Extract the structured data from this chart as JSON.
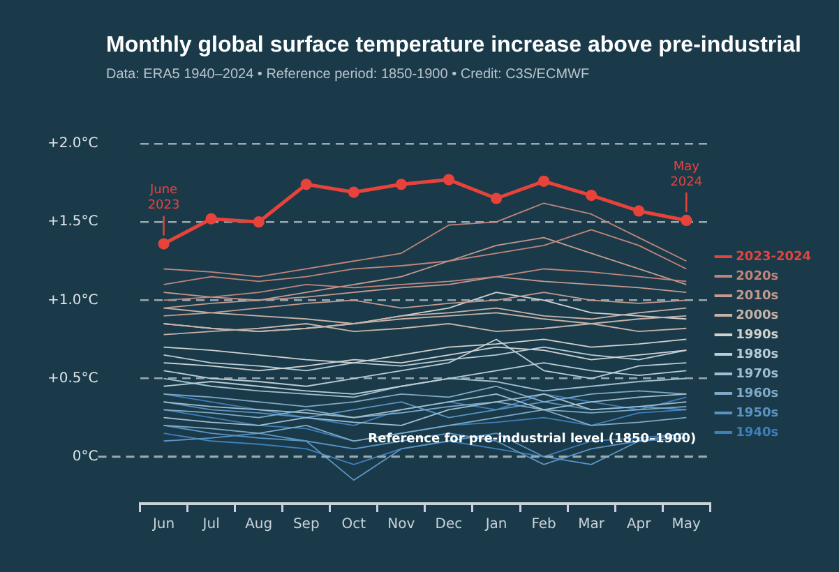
{
  "chart_data": {
    "type": "line",
    "title": "Monthly global surface temperature increase above pre-industrial",
    "subtitle": "Data: ERA5 1940–2024 • Reference period: 1850-1900 • Credit: C3S/ECMWF",
    "categories": [
      "Jun",
      "Jul",
      "Aug",
      "Sep",
      "Oct",
      "Nov",
      "Dec",
      "Jan",
      "Feb",
      "Mar",
      "Apr",
      "May"
    ],
    "ylim": [
      -0.3,
      2
    ],
    "yticks": [
      {
        "value": 0,
        "label": "0°C"
      },
      {
        "value": 0.5,
        "label": "+0.5°C"
      },
      {
        "value": 1,
        "label": "+1.0°C"
      },
      {
        "value": 1.5,
        "label": "+1.5°C"
      },
      {
        "value": 2,
        "label": "+2.0°C"
      }
    ],
    "grid": "y",
    "legend": "right",
    "line_style": "solid",
    "ref_lines": [
      {
        "axis": "y",
        "value": 0,
        "label": "Reference for pre-industrial level (1850–1900)",
        "color": "#9aa8b0",
        "line_style": "dashed"
      }
    ],
    "annotations": [
      {
        "text": "June 2023",
        "x": "Jun",
        "y": 1.36
      },
      {
        "text": "May 2024",
        "x": "May",
        "y": 1.51
      }
    ],
    "series": [
      {
        "name": "2023-2024",
        "color": "#e8433a",
        "marker": "circle",
        "values": [
          1.36,
          1.52,
          1.5,
          1.74,
          1.69,
          1.74,
          1.77,
          1.65,
          1.76,
          1.67,
          1.57,
          1.51
        ]
      },
      {
        "name": "2020s",
        "color": "#c0857a",
        "values": [
          1.2,
          1.18,
          1.15,
          1.2,
          1.25,
          1.3,
          1.48,
          1.5,
          1.62,
          1.55,
          1.4,
          1.25
        ]
      },
      {
        "color": "#c0857a",
        "values": [
          1.1,
          1.15,
          1.12,
          1.15,
          1.2,
          1.22,
          1.25,
          1.3,
          1.35,
          1.45,
          1.35,
          1.2
        ]
      },
      {
        "color": "#c0857a",
        "values": [
          1,
          1.02,
          1.05,
          1.1,
          1.08,
          1.1,
          1.12,
          1.15,
          1.2,
          1.18,
          1.15,
          1.12
        ]
      },
      {
        "name": "2010s",
        "color": "#c49a8e",
        "values": [
          0.95,
          0.98,
          1,
          1.05,
          1.1,
          1.15,
          1.25,
          1.35,
          1.4,
          1.3,
          1.2,
          1.1
        ]
      },
      {
        "color": "#c49a8e",
        "values": [
          1.05,
          1.02,
          1,
          1.02,
          1.05,
          1.08,
          1.1,
          1.15,
          1.12,
          1.1,
          1.08,
          1.05
        ]
      },
      {
        "color": "#c49a8e",
        "values": [
          0.9,
          0.92,
          0.95,
          0.98,
          1,
          0.95,
          0.98,
          1,
          1.05,
          1,
          0.98,
          1
        ]
      },
      {
        "name": "2000s",
        "color": "#c6b2a8",
        "values": [
          0.85,
          0.82,
          0.8,
          0.82,
          0.85,
          0.88,
          0.9,
          0.92,
          0.88,
          0.85,
          0.88,
          0.9
        ]
      },
      {
        "color": "#c6b2a8",
        "values": [
          0.95,
          0.92,
          0.9,
          0.88,
          0.85,
          0.9,
          0.92,
          0.95,
          0.9,
          0.88,
          0.92,
          0.95
        ]
      },
      {
        "color": "#c6b2a8",
        "values": [
          0.78,
          0.8,
          0.82,
          0.85,
          0.8,
          0.82,
          0.85,
          0.8,
          0.82,
          0.85,
          0.8,
          0.82
        ]
      },
      {
        "name": "1990s",
        "color": "#d0d2d0",
        "values": [
          0.7,
          0.68,
          0.65,
          0.62,
          0.6,
          0.65,
          0.7,
          0.72,
          0.75,
          0.7,
          0.72,
          0.75
        ]
      },
      {
        "color": "#d0d2d0",
        "values": [
          0.6,
          0.58,
          0.55,
          0.58,
          0.62,
          0.6,
          0.65,
          0.7,
          0.68,
          0.62,
          0.65,
          0.68
        ]
      },
      {
        "color": "#d0d2d0",
        "values": [
          0.85,
          0.82,
          0.8,
          0.82,
          0.85,
          0.9,
          0.95,
          1.05,
          1,
          0.92,
          0.9,
          0.88
        ]
      },
      {
        "name": "1980s",
        "color": "#b8cdd6",
        "values": [
          0.55,
          0.5,
          0.48,
          0.45,
          0.5,
          0.55,
          0.6,
          0.75,
          0.55,
          0.5,
          0.58,
          0.6
        ]
      },
      {
        "color": "#b8cdd6",
        "values": [
          0.45,
          0.48,
          0.45,
          0.42,
          0.4,
          0.45,
          0.5,
          0.55,
          0.6,
          0.55,
          0.52,
          0.55
        ]
      },
      {
        "color": "#b8cdd6",
        "values": [
          0.65,
          0.6,
          0.58,
          0.55,
          0.6,
          0.58,
          0.62,
          0.65,
          0.7,
          0.65,
          0.62,
          0.68
        ]
      },
      {
        "name": "1970s",
        "color": "#9fbfcf",
        "values": [
          0.35,
          0.32,
          0.3,
          0.28,
          0.25,
          0.3,
          0.35,
          0.4,
          0.3,
          0.35,
          0.38,
          0.4
        ]
      },
      {
        "color": "#9fbfcf",
        "values": [
          0.5,
          0.45,
          0.42,
          0.4,
          0.38,
          0.45,
          0.5,
          0.48,
          0.42,
          0.45,
          0.48,
          0.5
        ]
      },
      {
        "color": "#9fbfcf",
        "values": [
          0.25,
          0.22,
          0.2,
          0.25,
          0.22,
          0.2,
          0.3,
          0.35,
          0.4,
          0.3,
          0.32,
          0.35
        ]
      },
      {
        "name": "1960s",
        "color": "#7eaac6",
        "values": [
          0.3,
          0.28,
          0.25,
          0.3,
          0.25,
          0.28,
          0.32,
          0.35,
          0.3,
          0.28,
          0.3,
          0.32
        ]
      },
      {
        "color": "#7eaac6",
        "values": [
          0.2,
          0.18,
          0.15,
          0.2,
          0.1,
          0.15,
          0.2,
          0.25,
          0.3,
          0.2,
          0.22,
          0.25
        ]
      },
      {
        "color": "#7eaac6",
        "values": [
          0.4,
          0.38,
          0.35,
          0.32,
          0.35,
          0.4,
          0.38,
          0.45,
          0.35,
          0.4,
          0.42,
          0.4
        ]
      },
      {
        "name": "1950s",
        "color": "#5a94c2",
        "values": [
          0.2,
          0.15,
          0.12,
          0.1,
          -0.15,
          0.05,
          0.1,
          0.15,
          0,
          -0.05,
          0.1,
          0.15
        ]
      },
      {
        "color": "#5a94c2",
        "values": [
          0.35,
          0.3,
          0.28,
          0.25,
          0.3,
          0.35,
          0.25,
          0.3,
          0.35,
          0.3,
          0.32,
          0.3
        ]
      },
      {
        "color": "#5a94c2",
        "values": [
          0.1,
          0.12,
          0.15,
          0.1,
          0.05,
          0.1,
          0.15,
          0.1,
          -0.05,
          0.05,
          0.1,
          0.12
        ]
      },
      {
        "name": "1940s",
        "color": "#3f7fba",
        "values": [
          0.3,
          0.25,
          0.2,
          0.18,
          0.1,
          0.15,
          0.2,
          0.22,
          0.25,
          0.2,
          0.28,
          0.3
        ]
      },
      {
        "color": "#3f7fba",
        "values": [
          0.15,
          0.1,
          0.08,
          0.05,
          -0.05,
          0.05,
          0.1,
          0.05,
          0,
          0.1,
          0.12,
          0.15
        ]
      },
      {
        "color": "#3f7fba",
        "values": [
          0.4,
          0.35,
          0.3,
          0.25,
          0.2,
          0.3,
          0.35,
          0.3,
          0.4,
          0.35,
          0.3,
          0.38
        ]
      }
    ]
  }
}
